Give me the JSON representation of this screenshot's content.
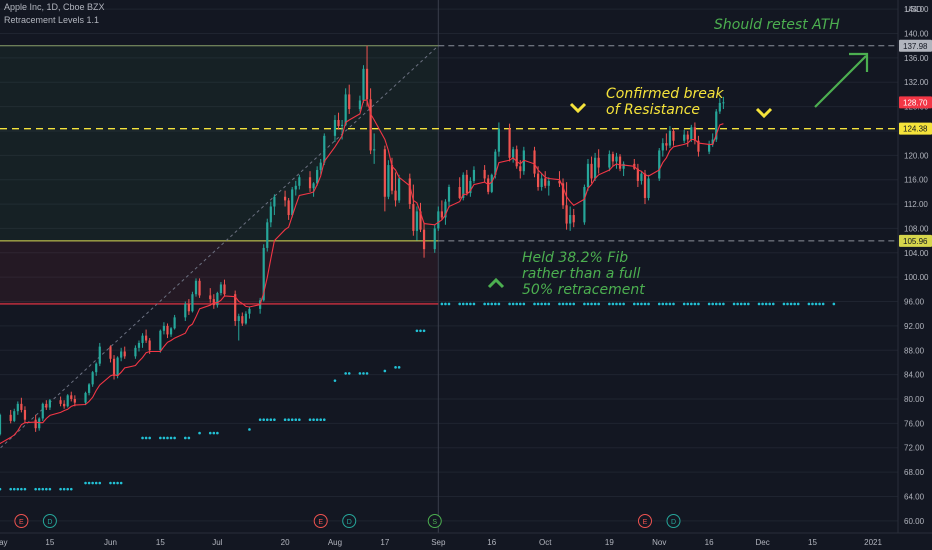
{
  "header": {
    "symbol_line": "Apple Inc, 1D, Cboe BZX",
    "indicator_line": "Retracement Levels 1.1"
  },
  "currency": "USD",
  "annotations": {
    "retest": "Should retest ATH",
    "confirmed_1": "Confirmed break",
    "confirmed_2": "of Resistance",
    "held_1": "Held 38.2% Fib",
    "held_2": "rather than a full",
    "held_3": "50% retracement"
  },
  "colors": {
    "background": "#131722",
    "up": "#26a69a",
    "down": "#ef5350",
    "ema": "#f23645",
    "fib_line": "#dddd55",
    "resistance": "#f5e33b",
    "dots": "#22c2d6",
    "arrow": "#4caf50"
  },
  "chart_data": {
    "type": "candlestick",
    "y_axis": {
      "ticks": [
        "144.00",
        "140.00",
        "136.00",
        "132.00",
        "128.00",
        "124.00",
        "120.00",
        "116.00",
        "112.00",
        "108.00",
        "104.00",
        "100.00",
        "96.00",
        "92.00",
        "88.00",
        "84.00",
        "80.00",
        "76.00",
        "72.00",
        "68.00",
        "64.00",
        "60.00"
      ],
      "range": [
        58,
        145.5
      ]
    },
    "x_axis": {
      "ticks": [
        "May",
        "15",
        "Jun",
        "15",
        "Jul",
        "20",
        "Aug",
        "17",
        "Sep",
        "16",
        "Oct",
        "19",
        "Nov",
        "16",
        "Dec",
        "15",
        "2021"
      ],
      "range": [
        "2020-05-01",
        "2021-01-08"
      ]
    },
    "price_labels": [
      {
        "value": 137.98,
        "text": "137.98",
        "kind": "ath"
      },
      {
        "value": 128.7,
        "text": "128.70",
        "kind": "last"
      },
      {
        "value": 124.38,
        "text": "124.38",
        "kind": "resistance"
      },
      {
        "value": 105.96,
        "text": "105.96",
        "kind": "fib"
      }
    ],
    "levels": {
      "high": 137.98,
      "fib_382": 105.96,
      "fib_50": 95.6,
      "resistance": 124.38,
      "trend_start": [
        "2020-04-20",
        66.0
      ]
    },
    "events": [
      {
        "date": "2020-05-07",
        "label": "E"
      },
      {
        "date": "2020-05-15",
        "label": "D"
      },
      {
        "date": "2020-07-30",
        "label": "E"
      },
      {
        "date": "2020-08-07",
        "label": "D"
      },
      {
        "date": "2020-08-31",
        "label": "S"
      },
      {
        "date": "2020-10-29",
        "label": "E"
      },
      {
        "date": "2020-11-06",
        "label": "D"
      }
    ],
    "sar_dots": [
      {
        "from": "2020-04-20",
        "to": "2020-05-21",
        "value": 65.2
      },
      {
        "from": "2020-05-23",
        "to": "2020-06-04",
        "value": 66.2
      },
      {
        "from": "2020-06-10",
        "to": "2020-06-23",
        "value": 73.6
      },
      {
        "from": "2020-06-26",
        "to": "2020-07-01",
        "value": 74.4
      },
      {
        "from": "2020-07-10",
        "to": "2020-07-10",
        "value": 75.0
      },
      {
        "from": "2020-07-13",
        "to": "2020-07-31",
        "value": 76.6
      },
      {
        "from": "2020-08-02",
        "to": "2020-08-03",
        "value": 83.0
      },
      {
        "from": "2020-08-06",
        "to": "2020-08-12",
        "value": 84.2
      },
      {
        "from": "2020-08-15",
        "to": "2020-08-17",
        "value": 84.6
      },
      {
        "from": "2020-08-20",
        "to": "2020-08-21",
        "value": 85.2
      },
      {
        "from": "2020-08-26",
        "to": "2020-08-30",
        "value": 91.2
      },
      {
        "from": "2020-09-02",
        "to": "2020-12-21",
        "value": 95.6
      }
    ],
    "candles": {
      "start": "2020-04-20",
      "ohlc": [
        [
          69.8,
          70.6,
          68.8,
          69.2
        ],
        [
          69.2,
          70.4,
          68.6,
          70.0
        ],
        [
          70.0,
          71.4,
          69.4,
          70.8
        ],
        [
          70.8,
          71.0,
          69.8,
          70.2
        ],
        [
          70.2,
          72.4,
          70.0,
          72.0
        ],
        [
          72.0,
          73.2,
          71.6,
          72.8
        ],
        [
          72.8,
          73.6,
          71.8,
          72.2
        ],
        [
          72.2,
          74.8,
          72.0,
          74.6
        ],
        [
          74.6,
          76.0,
          73.6,
          74.2
        ],
        [
          74.2,
          77.6,
          74.0,
          77.4
        ],
        [
          77.4,
          78.2,
          76.0,
          76.4
        ],
        [
          76.4,
          78.4,
          76.2,
          78.0
        ],
        [
          78.0,
          79.6,
          77.4,
          79.2
        ],
        [
          79.2,
          80.2,
          77.8,
          78.2
        ],
        [
          78.2,
          78.8,
          76.0,
          76.6
        ],
        [
          76.6,
          77.4,
          74.6,
          75.2
        ],
        [
          75.2,
          77.0,
          74.8,
          76.8
        ],
        [
          76.8,
          79.4,
          76.4,
          79.2
        ],
        [
          79.2,
          79.8,
          78.2,
          78.6
        ],
        [
          78.6,
          80.0,
          78.2,
          79.8
        ],
        [
          79.8,
          80.4,
          78.8,
          79.2
        ],
        [
          79.2,
          79.8,
          78.4,
          78.8
        ],
        [
          78.8,
          80.8,
          78.6,
          80.6
        ],
        [
          80.6,
          81.2,
          79.6,
          80.0
        ],
        [
          80.0,
          80.6,
          78.8,
          79.4
        ],
        [
          79.4,
          81.2,
          79.0,
          81.0
        ],
        [
          81.0,
          82.6,
          80.6,
          82.4
        ],
        [
          82.4,
          84.6,
          82.0,
          84.4
        ],
        [
          84.4,
          86.0,
          83.8,
          85.8
        ],
        [
          85.8,
          89.2,
          85.4,
          88.6
        ],
        [
          88.6,
          88.8,
          86.0,
          86.6
        ],
        [
          86.6,
          87.2,
          83.2,
          83.8
        ],
        [
          83.8,
          87.0,
          83.4,
          86.8
        ],
        [
          86.8,
          88.4,
          86.2,
          87.8
        ],
        [
          87.8,
          88.6,
          86.6,
          87.0
        ],
        [
          87.0,
          88.8,
          86.6,
          88.4
        ],
        [
          88.4,
          89.6,
          87.8,
          89.2
        ],
        [
          89.2,
          90.8,
          88.4,
          90.4
        ],
        [
          90.4,
          91.4,
          89.2,
          89.6
        ],
        [
          89.6,
          90.0,
          87.4,
          88.0
        ],
        [
          88.0,
          91.4,
          87.6,
          91.2
        ],
        [
          91.2,
          92.6,
          90.6,
          92.0
        ],
        [
          92.0,
          92.4,
          90.0,
          90.6
        ],
        [
          90.6,
          91.8,
          90.2,
          91.6
        ],
        [
          91.6,
          93.8,
          91.4,
          93.4
        ],
        [
          93.4,
          96.0,
          92.8,
          95.6
        ],
        [
          95.6,
          96.4,
          93.8,
          94.4
        ],
        [
          94.4,
          97.6,
          94.2,
          97.2
        ],
        [
          97.2,
          99.8,
          96.8,
          99.4
        ],
        [
          99.4,
          99.8,
          96.6,
          97.0
        ],
        [
          97.0,
          98.2,
          95.8,
          96.4
        ],
        [
          96.4,
          97.2,
          94.8,
          95.4
        ],
        [
          95.4,
          97.6,
          95.0,
          97.4
        ],
        [
          97.4,
          99.2,
          97.0,
          98.8
        ],
        [
          98.8,
          99.6,
          96.8,
          97.2
        ],
        [
          97.2,
          97.8,
          92.0,
          92.8
        ],
        [
          92.8,
          94.0,
          89.6,
          93.6
        ],
        [
          93.6,
          94.2,
          92.0,
          92.4
        ],
        [
          92.4,
          94.4,
          92.2,
          94.0
        ],
        [
          94.0,
          95.2,
          93.2,
          94.8
        ],
        [
          94.8,
          96.6,
          94.0,
          96.2
        ],
        [
          96.2,
          105.4,
          96.0,
          104.8
        ],
        [
          104.8,
          109.6,
          104.2,
          109.0
        ],
        [
          109.0,
          112.4,
          108.2,
          111.6
        ],
        [
          111.6,
          113.6,
          110.2,
          113.2
        ],
        [
          113.2,
          114.2,
          111.6,
          112.6
        ],
        [
          112.6,
          113.0,
          109.4,
          110.2
        ],
        [
          110.2,
          114.8,
          109.8,
          114.4
        ],
        [
          114.4,
          115.8,
          113.4,
          115.0
        ],
        [
          115.0,
          116.8,
          114.4,
          116.4
        ],
        [
          116.4,
          117.4,
          114.0,
          114.6
        ],
        [
          114.6,
          115.6,
          113.2,
          115.4
        ],
        [
          115.4,
          118.2,
          115.0,
          117.6
        ],
        [
          117.6,
          119.4,
          116.8,
          118.8
        ],
        [
          118.8,
          123.6,
          118.4,
          123.2
        ],
        [
          123.2,
          126.6,
          122.2,
          125.8
        ],
        [
          125.8,
          127.0,
          124.2,
          124.8
        ],
        [
          124.8,
          125.8,
          122.6,
          125.0
        ],
        [
          125.0,
          131.0,
          124.8,
          130.0
        ],
        [
          130.0,
          131.6,
          126.8,
          127.6
        ],
        [
          127.6,
          129.8,
          127.2,
          129.0
        ],
        [
          129.0,
          134.8,
          128.6,
          134.2
        ],
        [
          134.2,
          138.0,
          128.0,
          129.2
        ],
        [
          129.2,
          131.0,
          120.2,
          120.8
        ],
        [
          120.8,
          123.6,
          118.6,
          121.0
        ],
        [
          121.0,
          121.6,
          110.8,
          113.2
        ],
        [
          113.2,
          119.2,
          112.8,
          118.4
        ],
        [
          118.4,
          119.6,
          113.6,
          114.2
        ],
        [
          114.2,
          117.2,
          111.6,
          112.6
        ],
        [
          112.6,
          116.8,
          112.2,
          116.2
        ],
        [
          116.2,
          117.0,
          111.2,
          112.0
        ],
        [
          112.0,
          115.2,
          106.8,
          107.6
        ],
        [
          107.6,
          111.6,
          106.0,
          110.8
        ],
        [
          110.8,
          112.2,
          107.4,
          107.8
        ],
        [
          107.8,
          109.0,
          103.2,
          104.6
        ],
        [
          104.6,
          108.6,
          104.0,
          108.0
        ],
        [
          108.0,
          111.6,
          107.6,
          110.8
        ],
        [
          110.8,
          112.6,
          109.4,
          109.8
        ],
        [
          109.8,
          112.8,
          108.6,
          112.4
        ],
        [
          112.4,
          115.2,
          111.4,
          114.8
        ],
        [
          114.8,
          116.4,
          112.8,
          113.0
        ],
        [
          113.0,
          117.2,
          112.6,
          116.8
        ],
        [
          116.8,
          117.6,
          113.4,
          113.8
        ],
        [
          113.8,
          116.4,
          113.2,
          115.8
        ],
        [
          115.8,
          118.2,
          115.4,
          117.6
        ],
        [
          117.6,
          118.4,
          115.6,
          116.2
        ],
        [
          116.2,
          116.8,
          113.6,
          114.0
        ],
        [
          114.0,
          117.0,
          113.8,
          116.8
        ],
        [
          116.8,
          121.0,
          116.2,
          120.6
        ],
        [
          120.6,
          125.4,
          119.8,
          124.4
        ],
        [
          124.4,
          125.2,
          119.0,
          119.6
        ],
        [
          119.6,
          121.4,
          118.8,
          121.0
        ],
        [
          121.0,
          121.6,
          117.8,
          118.2
        ],
        [
          118.2,
          119.2,
          116.2,
          117.4
        ],
        [
          117.4,
          121.4,
          116.8,
          120.8
        ],
        [
          120.8,
          121.4,
          116.4,
          117.0
        ],
        [
          117.0,
          118.2,
          114.2,
          114.8
        ],
        [
          114.8,
          117.0,
          114.2,
          116.2
        ],
        [
          116.2,
          117.4,
          114.6,
          115.0
        ],
        [
          115.0,
          116.4,
          113.4,
          115.8
        ],
        [
          115.8,
          117.4,
          114.8,
          115.4
        ],
        [
          115.4,
          116.2,
          111.2,
          111.8
        ],
        [
          111.8,
          115.6,
          107.8,
          108.8
        ],
        [
          108.8,
          111.6,
          107.6,
          110.2
        ],
        [
          110.2,
          111.2,
          108.2,
          109.0
        ],
        [
          109.0,
          115.2,
          108.6,
          114.8
        ],
        [
          114.8,
          119.4,
          114.2,
          118.6
        ],
        [
          118.6,
          119.8,
          115.4,
          116.2
        ],
        [
          116.2,
          120.4,
          115.8,
          119.6
        ],
        [
          119.6,
          121.0,
          117.0,
          118.0
        ],
        [
          118.0,
          120.8,
          117.4,
          120.2
        ],
        [
          120.2,
          120.6,
          118.2,
          119.0
        ],
        [
          119.0,
          120.4,
          117.8,
          119.8
        ],
        [
          119.8,
          120.2,
          117.4,
          117.8
        ],
        [
          117.8,
          119.0,
          116.6,
          118.6
        ],
        [
          118.6,
          119.4,
          117.6,
          117.8
        ],
        [
          117.8,
          118.6,
          114.8,
          115.8
        ],
        [
          115.8,
          117.4,
          115.2,
          117.0
        ],
        [
          117.0,
          117.6,
          112.0,
          113.0
        ],
        [
          113.0,
          116.8,
          112.6,
          116.2
        ],
        [
          116.2,
          121.2,
          115.8,
          120.8
        ],
        [
          120.8,
          122.8,
          119.8,
          122.0
        ],
        [
          122.0,
          123.6,
          120.8,
          121.6
        ],
        [
          121.6,
          124.8,
          121.2,
          124.0
        ],
        [
          124.0,
          124.4,
          121.6,
          122.4
        ],
        [
          122.4,
          124.2,
          122.0,
          123.4
        ],
        [
          123.4,
          124.0,
          121.4,
          122.6
        ],
        [
          122.6,
          125.0,
          122.2,
          124.6
        ],
        [
          124.6,
          125.4,
          121.8,
          122.4
        ],
        [
          122.4,
          123.2,
          119.8,
          120.6
        ],
        [
          120.6,
          122.4,
          120.2,
          121.8
        ],
        [
          121.8,
          123.6,
          121.4,
          122.6
        ],
        [
          122.6,
          127.6,
          122.2,
          127.2
        ],
        [
          127.2,
          129.4,
          126.8,
          128.6
        ],
        [
          128.6,
          129.6,
          127.6,
          128.7
        ]
      ]
    },
    "ema_line": {
      "start": "2020-04-20",
      "values": [
        69.8,
        69.5,
        69.4,
        69.6,
        69.8,
        70.3,
        70.8,
        71.3,
        72.1,
        72.7,
        73.7,
        74.1,
        74.8,
        75.8,
        76.1,
        76.2,
        76.1,
        76.1,
        76.8,
        77.3,
        77.8,
        78.1,
        78.3,
        78.8,
        79.0,
        79.1,
        79.6,
        80.3,
        81.4,
        82.3,
        83.8,
        84.0,
        83.8,
        84.4,
        85.1,
        85.5,
        86.2,
        86.8,
        87.6,
        87.8,
        87.8,
        88.6,
        89.3,
        89.6,
        90.0,
        90.8,
        91.9,
        92.3,
        93.5,
        94.8,
        95.4,
        95.8,
        95.8,
        96.2,
        96.9,
        96.8,
        96.0,
        95.7,
        95.2,
        95.1,
        95.5,
        97.4,
        100.0,
        103.0,
        106.0,
        107.8,
        108.2,
        110.0,
        111.8,
        113.4,
        113.8,
        114.0,
        115.2,
        116.6,
        119.0,
        121.4,
        122.3,
        123.2,
        125.4,
        125.8,
        126.8,
        129.0,
        129.1,
        126.8,
        125.8,
        122.6,
        120.8,
        118.2,
        117.6,
        116.4,
        115.0,
        112.6,
        112.2,
        110.6,
        108.8,
        108.6,
        109.0,
        109.4,
        110.2,
        111.6,
        112.4,
        113.6,
        113.6,
        114.2,
        115.2,
        115.6,
        115.2,
        115.6,
        116.8,
        118.8,
        119.2,
        119.6,
        119.0,
        118.6,
        119.2,
        118.6,
        117.6,
        117.0,
        116.4,
        116.2,
        116.0,
        114.8,
        113.2,
        112.4,
        111.8,
        112.8,
        114.6,
        115.2,
        116.2,
        116.8,
        117.6,
        118.2,
        118.6,
        118.4,
        118.4,
        118.2,
        117.6,
        117.4,
        116.8,
        116.6,
        117.6,
        118.8,
        119.6,
        120.8,
        121.4,
        121.8,
        122.0,
        122.6,
        122.6,
        122.0,
        121.8,
        121.8,
        123.4,
        125.0,
        125.2
      ]
    }
  }
}
